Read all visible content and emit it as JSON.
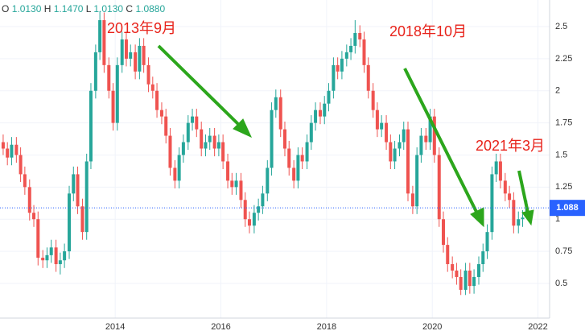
{
  "chart_data": {
    "type": "candlestick",
    "header": {
      "o": "O",
      "open": "1.0130",
      "h": "H",
      "high": "1.1470",
      "l": "L",
      "low": "1.0130",
      "c": "C",
      "close": "1.0880"
    },
    "annotations": [
      "2013年9月",
      "2018年10月",
      "2021年3月"
    ],
    "up_color": "#26a69a",
    "down_color": "#ef5350",
    "price_line_color": "#2962ff",
    "x": [
      2011.88,
      2011.96,
      2012.04,
      2012.13,
      2012.21,
      2012.29,
      2012.38,
      2012.46,
      2012.54,
      2012.63,
      2012.71,
      2012.79,
      2012.88,
      2012.96,
      2013.04,
      2013.13,
      2013.21,
      2013.29,
      2013.38,
      2013.46,
      2013.54,
      2013.63,
      2013.71,
      2013.79,
      2013.88,
      2013.96,
      2014.04,
      2014.13,
      2014.21,
      2014.29,
      2014.38,
      2014.46,
      2014.54,
      2014.63,
      2014.71,
      2014.79,
      2014.88,
      2014.96,
      2015.04,
      2015.13,
      2015.21,
      2015.29,
      2015.38,
      2015.46,
      2015.54,
      2015.63,
      2015.71,
      2015.79,
      2015.88,
      2015.96,
      2016.04,
      2016.13,
      2016.21,
      2016.29,
      2016.38,
      2016.46,
      2016.54,
      2016.63,
      2016.71,
      2016.79,
      2016.88,
      2016.96,
      2017.04,
      2017.13,
      2017.21,
      2017.29,
      2017.38,
      2017.46,
      2017.54,
      2017.63,
      2017.71,
      2017.79,
      2017.88,
      2017.96,
      2018.04,
      2018.13,
      2018.21,
      2018.29,
      2018.38,
      2018.46,
      2018.54,
      2018.63,
      2018.71,
      2018.79,
      2018.88,
      2018.96,
      2019.04,
      2019.13,
      2019.21,
      2019.29,
      2019.38,
      2019.46,
      2019.54,
      2019.63,
      2019.71,
      2019.79,
      2019.88,
      2019.96,
      2020.04,
      2020.13,
      2020.21,
      2020.29,
      2020.38,
      2020.46,
      2020.54,
      2020.63,
      2020.71,
      2020.79,
      2020.88,
      2020.96,
      2021.04,
      2021.13,
      2021.21,
      2021.29,
      2021.38,
      2021.46,
      2021.54,
      2021.63,
      2021.71,
      2021.79
    ],
    "open": [
      1.6,
      1.55,
      1.48,
      1.58,
      1.5,
      1.35,
      1.25,
      1.05,
      1.0,
      0.7,
      0.68,
      0.72,
      0.78,
      0.65,
      0.68,
      0.75,
      1.2,
      1.35,
      1.1,
      0.9,
      1.45,
      2.0,
      2.3,
      2.55,
      2.2,
      2.0,
      1.75,
      2.2,
      2.4,
      2.25,
      2.3,
      2.15,
      2.35,
      2.2,
      2.05,
      2.0,
      1.85,
      1.8,
      1.65,
      1.4,
      1.3,
      1.5,
      1.6,
      1.75,
      1.8,
      1.7,
      1.55,
      1.6,
      1.65,
      1.55,
      1.6,
      1.45,
      1.3,
      1.25,
      1.3,
      1.15,
      1.0,
      0.95,
      1.05,
      1.1,
      1.2,
      1.4,
      1.85,
      1.95,
      1.7,
      1.55,
      1.4,
      1.3,
      1.5,
      1.45,
      1.6,
      1.75,
      1.85,
      1.8,
      1.9,
      2.0,
      2.2,
      2.15,
      2.25,
      2.3,
      2.35,
      2.45,
      2.4,
      2.2,
      2.0,
      1.85,
      1.7,
      1.75,
      1.6,
      1.45,
      1.55,
      1.6,
      1.7,
      1.2,
      1.1,
      1.5,
      1.65,
      1.6,
      1.8,
      1.5,
      1.0,
      0.8,
      0.65,
      0.6,
      0.55,
      0.45,
      0.6,
      0.48,
      0.55,
      0.65,
      0.75,
      0.9,
      1.35,
      1.45,
      1.3,
      1.2,
      1.15,
      0.95,
      1.0,
      1.013
    ],
    "high": [
      1.66,
      1.6,
      1.64,
      1.64,
      1.56,
      1.41,
      1.31,
      1.11,
      1.06,
      0.76,
      0.78,
      0.84,
      0.84,
      0.74,
      0.81,
      1.26,
      1.41,
      1.41,
      1.16,
      1.51,
      2.06,
      2.36,
      2.62,
      2.61,
      2.26,
      2.06,
      2.26,
      2.46,
      2.46,
      2.36,
      2.36,
      2.41,
      2.41,
      2.26,
      2.11,
      2.06,
      1.91,
      1.86,
      1.71,
      1.46,
      1.56,
      1.66,
      1.81,
      1.86,
      1.86,
      1.76,
      1.66,
      1.71,
      1.71,
      1.66,
      1.66,
      1.51,
      1.36,
      1.36,
      1.36,
      1.21,
      1.06,
      1.11,
      1.16,
      1.26,
      1.46,
      1.91,
      2.01,
      2.01,
      1.76,
      1.61,
      1.46,
      1.56,
      1.56,
      1.66,
      1.81,
      1.91,
      1.91,
      1.96,
      2.06,
      2.26,
      2.26,
      2.31,
      2.36,
      2.41,
      2.55,
      2.51,
      2.46,
      2.26,
      2.06,
      1.91,
      1.81,
      1.81,
      1.66,
      1.61,
      1.66,
      1.76,
      1.76,
      1.26,
      1.56,
      1.71,
      1.71,
      1.86,
      1.86,
      1.56,
      1.06,
      0.86,
      0.71,
      0.66,
      0.61,
      0.66,
      0.66,
      0.61,
      0.71,
      0.81,
      0.96,
      1.41,
      1.51,
      1.51,
      1.36,
      1.26,
      1.21,
      1.06,
      1.07,
      1.147
    ],
    "low": [
      1.5,
      1.42,
      1.42,
      1.44,
      1.29,
      1.19,
      0.99,
      0.94,
      0.64,
      0.62,
      0.62,
      0.66,
      0.59,
      0.57,
      0.62,
      0.69,
      1.14,
      1.04,
      0.84,
      0.84,
      1.39,
      1.94,
      2.24,
      2.14,
      1.94,
      1.69,
      1.69,
      2.14,
      2.19,
      2.19,
      2.09,
      2.09,
      2.14,
      1.99,
      1.94,
      1.79,
      1.74,
      1.59,
      1.34,
      1.24,
      1.24,
      1.44,
      1.54,
      1.69,
      1.64,
      1.49,
      1.49,
      1.54,
      1.49,
      1.49,
      1.39,
      1.24,
      1.19,
      1.19,
      1.09,
      0.94,
      0.89,
      0.89,
      0.99,
      1.04,
      1.14,
      1.34,
      1.79,
      1.64,
      1.49,
      1.34,
      1.24,
      1.24,
      1.39,
      1.39,
      1.54,
      1.69,
      1.74,
      1.74,
      1.84,
      1.94,
      2.09,
      2.09,
      2.19,
      2.24,
      2.29,
      2.34,
      2.14,
      1.94,
      1.79,
      1.64,
      1.64,
      1.54,
      1.39,
      1.39,
      1.49,
      1.54,
      1.14,
      1.04,
      1.04,
      1.44,
      1.54,
      1.54,
      1.44,
      0.94,
      0.74,
      0.59,
      0.54,
      0.49,
      0.41,
      0.41,
      0.42,
      0.42,
      0.49,
      0.59,
      0.69,
      0.84,
      1.29,
      1.24,
      1.14,
      1.09,
      0.89,
      0.89,
      0.94,
      1.013
    ],
    "close": [
      1.55,
      1.48,
      1.58,
      1.5,
      1.35,
      1.25,
      1.05,
      1.0,
      0.7,
      0.68,
      0.72,
      0.78,
      0.65,
      0.68,
      0.75,
      1.2,
      1.35,
      1.1,
      0.9,
      1.45,
      2.0,
      2.3,
      2.55,
      2.2,
      2.0,
      1.75,
      2.2,
      2.4,
      2.25,
      2.3,
      2.15,
      2.35,
      2.2,
      2.05,
      2.0,
      1.85,
      1.8,
      1.65,
      1.4,
      1.3,
      1.5,
      1.6,
      1.75,
      1.8,
      1.7,
      1.55,
      1.6,
      1.65,
      1.55,
      1.6,
      1.45,
      1.3,
      1.25,
      1.3,
      1.15,
      1.0,
      0.95,
      1.05,
      1.1,
      1.2,
      1.4,
      1.85,
      1.95,
      1.7,
      1.55,
      1.4,
      1.3,
      1.5,
      1.45,
      1.6,
      1.75,
      1.85,
      1.8,
      1.9,
      2.0,
      2.2,
      2.15,
      2.25,
      2.3,
      2.35,
      2.45,
      2.4,
      2.2,
      2.0,
      1.85,
      1.7,
      1.75,
      1.6,
      1.45,
      1.55,
      1.6,
      1.7,
      1.2,
      1.1,
      1.5,
      1.65,
      1.6,
      1.8,
      1.5,
      1.0,
      0.8,
      0.65,
      0.6,
      0.55,
      0.45,
      0.6,
      0.48,
      0.55,
      0.65,
      0.75,
      0.9,
      1.35,
      1.45,
      1.3,
      1.2,
      1.15,
      0.95,
      1.0,
      1.013,
      1.088
    ],
    "xlim": [
      2011.82,
      2022.22
    ],
    "xticks": [
      2014,
      2016,
      2018,
      2020,
      2022
    ],
    "ylim": [
      0.23,
      2.707
    ],
    "yticks": [
      0.5,
      0.75,
      1,
      1.25,
      1.5,
      1.75,
      2,
      2.25,
      2.5
    ],
    "grid": true
  }
}
